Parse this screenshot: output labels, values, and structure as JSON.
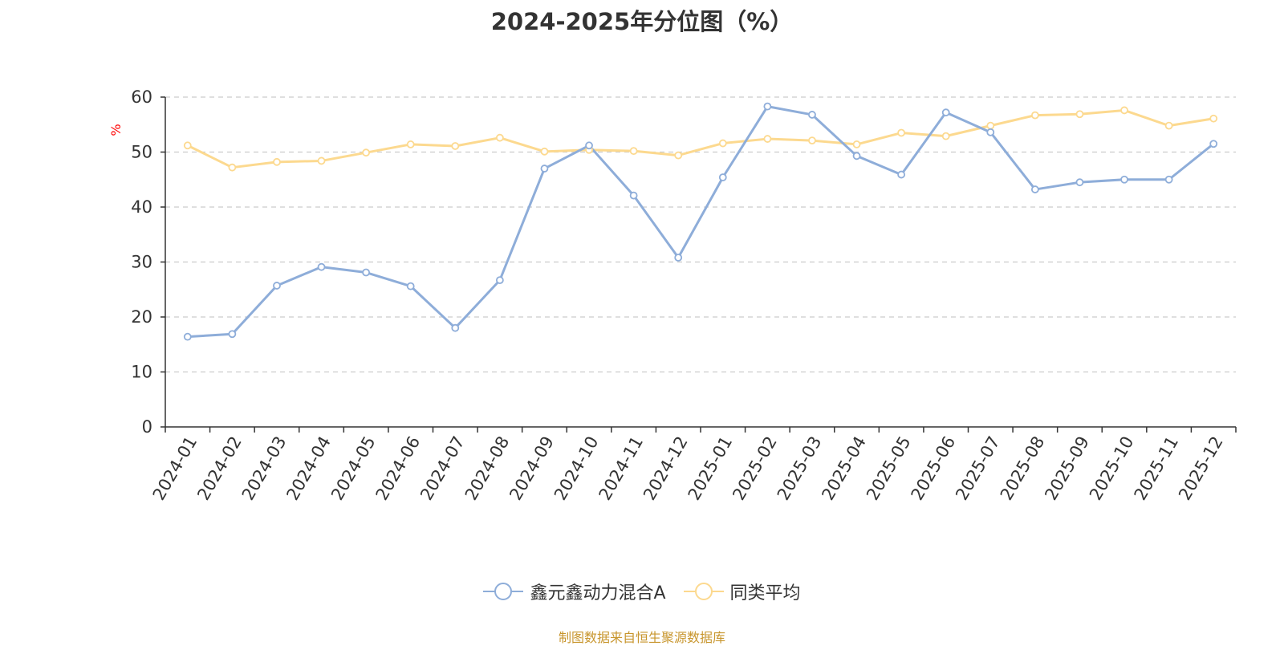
{
  "chart_data": {
    "type": "line",
    "title": "2024-2025年分位图（%）",
    "ylabel": "%",
    "xlabel": "",
    "ylim": [
      0,
      60
    ],
    "yticks": [
      0,
      10,
      20,
      30,
      40,
      50,
      60
    ],
    "grid": true,
    "legend_position": "bottom",
    "categories": [
      "2024-01",
      "2024-02",
      "2024-03",
      "2024-04",
      "2024-05",
      "2024-06",
      "2024-07",
      "2024-08",
      "2024-09",
      "2024-10",
      "2024-11",
      "2024-12",
      "2025-01",
      "2025-02",
      "2025-03",
      "2025-04",
      "2025-05",
      "2025-06",
      "2025-07",
      "2025-08",
      "2025-09",
      "2025-10",
      "2025-11",
      "2025-12"
    ],
    "series": [
      {
        "name": "鑫元鑫动力混合A",
        "color": "#8eadd9",
        "values": [
          16.4,
          16.9,
          25.7,
          29.1,
          28.1,
          25.6,
          18.0,
          26.7,
          47.0,
          51.2,
          42.1,
          30.8,
          45.4,
          58.3,
          56.8,
          49.3,
          45.9,
          57.2,
          53.6,
          43.2,
          44.5,
          45.0,
          45.0,
          51.5
        ]
      },
      {
        "name": "同类平均",
        "color": "#fcd98f",
        "values": [
          51.2,
          47.2,
          48.2,
          48.4,
          49.9,
          51.4,
          51.1,
          52.6,
          50.1,
          50.4,
          50.2,
          49.4,
          51.6,
          52.4,
          52.1,
          51.4,
          53.5,
          52.9,
          54.8,
          56.7,
          56.9,
          57.6,
          54.8,
          56.1
        ]
      }
    ]
  },
  "source_text": "制图数据来自恒生聚源数据库",
  "colors": {
    "axis": "#333333",
    "grid": "#cccccc",
    "ylabel": "#ff0000",
    "source": "#c8962e"
  }
}
